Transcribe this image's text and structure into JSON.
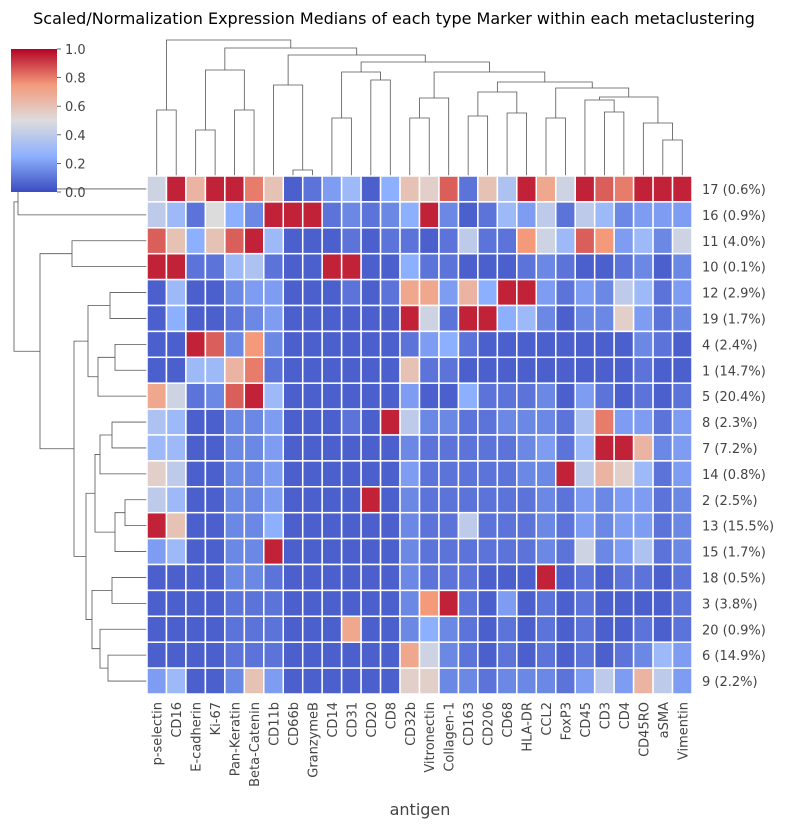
{
  "chart_data": {
    "type": "heatmap",
    "title": "Scaled/Normalization Expression Medians of each type Marker within each metaclustering",
    "xlabel": "antigen",
    "ylabel": "",
    "columns": [
      "p-selectin",
      "CD16",
      "E-cadherin",
      "Ki-67",
      "Pan-Keratin",
      "Beta-Catenin",
      "CD11b",
      "CD66b",
      "GranzymeB",
      "CD14",
      "CD31",
      "CD20",
      "CD8",
      "CD32b",
      "Vitronectin",
      "Collagen-1",
      "CD163",
      "CD206",
      "CD68",
      "HLA-DR",
      "CCL2",
      "FoxP3",
      "CD45",
      "CD3",
      "CD4",
      "CD45RO",
      "aSMA",
      "Vimentin"
    ],
    "rows": [
      "17 (0.6%)",
      "16 (0.9%)",
      "11 (4.0%)",
      "10 (0.1%)",
      "12 (2.9%)",
      "19 (1.7%)",
      "4 (2.4%)",
      "1 (14.7%)",
      "5 (20.4%)",
      "8 (2.3%)",
      "7 (7.2%)",
      "14 (0.8%)",
      "2 (2.5%)",
      "13 (15.5%)",
      "15 (1.7%)",
      "18 (0.5%)",
      "3 (3.8%)",
      "20 (0.9%)",
      "6 (14.9%)",
      "9 (2.2%)"
    ],
    "values": [
      [
        0.45,
        0.95,
        0.65,
        0.95,
        0.95,
        0.8,
        0.6,
        0.05,
        0.1,
        0.2,
        0.3,
        0.05,
        0.25,
        0.6,
        0.55,
        0.85,
        0.1,
        0.6,
        0.35,
        0.95,
        0.7,
        0.45,
        0.95,
        0.85,
        0.8,
        0.95,
        0.95,
        0.95
      ],
      [
        0.4,
        0.3,
        0.1,
        0.5,
        0.25,
        0.15,
        0.95,
        0.95,
        0.95,
        0.1,
        0.15,
        0.1,
        0.15,
        0.25,
        0.95,
        0.15,
        0.05,
        0.1,
        0.3,
        0.2,
        0.4,
        0.1,
        0.4,
        0.3,
        0.15,
        0.2,
        0.2,
        0.2
      ],
      [
        0.85,
        0.6,
        0.25,
        0.6,
        0.85,
        0.95,
        0.3,
        0.05,
        0.05,
        0.05,
        0.1,
        0.05,
        0.1,
        0.1,
        0.05,
        0.1,
        0.4,
        0.1,
        0.1,
        0.75,
        0.45,
        0.3,
        0.85,
        0.75,
        0.2,
        0.3,
        0.15,
        0.45
      ],
      [
        0.95,
        0.95,
        0.1,
        0.1,
        0.3,
        0.35,
        0.1,
        0.05,
        0.05,
        0.95,
        0.95,
        0.05,
        0.05,
        0.25,
        0.1,
        0.1,
        0.05,
        0.05,
        0.05,
        0.1,
        0.15,
        0.1,
        0.05,
        0.05,
        0.1,
        0.15,
        0.05,
        0.15
      ],
      [
        0.05,
        0.3,
        0.05,
        0.05,
        0.15,
        0.2,
        0.2,
        0.05,
        0.05,
        0.05,
        0.1,
        0.05,
        0.1,
        0.7,
        0.7,
        0.2,
        0.65,
        0.25,
        0.95,
        0.95,
        0.2,
        0.1,
        0.2,
        0.15,
        0.4,
        0.3,
        0.1,
        0.2
      ],
      [
        0.05,
        0.25,
        0.05,
        0.05,
        0.1,
        0.15,
        0.2,
        0.05,
        0.05,
        0.05,
        0.05,
        0.05,
        0.05,
        0.95,
        0.45,
        0.1,
        0.95,
        0.95,
        0.25,
        0.3,
        0.15,
        0.05,
        0.15,
        0.15,
        0.55,
        0.2,
        0.1,
        0.15
      ],
      [
        0.05,
        0.05,
        0.95,
        0.85,
        0.15,
        0.75,
        0.15,
        0.05,
        0.05,
        0.05,
        0.05,
        0.05,
        0.05,
        0.1,
        0.2,
        0.25,
        0.1,
        0.05,
        0.05,
        0.05,
        0.05,
        0.05,
        0.05,
        0.05,
        0.05,
        0.15,
        0.1,
        0.05
      ],
      [
        0.05,
        0.05,
        0.3,
        0.3,
        0.65,
        0.8,
        0.1,
        0.05,
        0.05,
        0.05,
        0.05,
        0.05,
        0.05,
        0.6,
        0.1,
        0.1,
        0.05,
        0.05,
        0.05,
        0.05,
        0.05,
        0.05,
        0.05,
        0.05,
        0.05,
        0.1,
        0.05,
        0.05
      ],
      [
        0.7,
        0.45,
        0.1,
        0.15,
        0.85,
        0.95,
        0.3,
        0.05,
        0.05,
        0.05,
        0.05,
        0.05,
        0.05,
        0.2,
        0.05,
        0.05,
        0.25,
        0.1,
        0.1,
        0.1,
        0.15,
        0.05,
        0.2,
        0.1,
        0.05,
        0.1,
        0.05,
        0.1
      ],
      [
        0.35,
        0.3,
        0.05,
        0.05,
        0.15,
        0.15,
        0.2,
        0.05,
        0.05,
        0.05,
        0.1,
        0.05,
        0.95,
        0.4,
        0.15,
        0.15,
        0.1,
        0.1,
        0.15,
        0.15,
        0.15,
        0.1,
        0.35,
        0.8,
        0.2,
        0.2,
        0.1,
        0.2
      ],
      [
        0.3,
        0.3,
        0.05,
        0.05,
        0.15,
        0.15,
        0.2,
        0.05,
        0.05,
        0.05,
        0.05,
        0.05,
        0.05,
        0.15,
        0.1,
        0.1,
        0.1,
        0.1,
        0.1,
        0.15,
        0.2,
        0.1,
        0.3,
        0.95,
        0.95,
        0.65,
        0.15,
        0.2
      ],
      [
        0.55,
        0.4,
        0.05,
        0.05,
        0.15,
        0.15,
        0.2,
        0.05,
        0.05,
        0.05,
        0.05,
        0.05,
        0.05,
        0.2,
        0.1,
        0.1,
        0.1,
        0.1,
        0.1,
        0.15,
        0.15,
        0.95,
        0.4,
        0.65,
        0.55,
        0.3,
        0.1,
        0.2
      ],
      [
        0.4,
        0.3,
        0.05,
        0.05,
        0.15,
        0.15,
        0.2,
        0.05,
        0.05,
        0.05,
        0.05,
        0.95,
        0.05,
        0.15,
        0.1,
        0.1,
        0.1,
        0.1,
        0.1,
        0.1,
        0.15,
        0.1,
        0.2,
        0.15,
        0.2,
        0.2,
        0.1,
        0.15
      ],
      [
        0.95,
        0.6,
        0.05,
        0.05,
        0.15,
        0.15,
        0.25,
        0.05,
        0.05,
        0.05,
        0.05,
        0.05,
        0.05,
        0.15,
        0.1,
        0.1,
        0.4,
        0.1,
        0.1,
        0.1,
        0.15,
        0.1,
        0.2,
        0.15,
        0.2,
        0.2,
        0.1,
        0.15
      ],
      [
        0.2,
        0.3,
        0.05,
        0.05,
        0.15,
        0.15,
        0.95,
        0.05,
        0.05,
        0.05,
        0.05,
        0.05,
        0.05,
        0.15,
        0.1,
        0.1,
        0.1,
        0.1,
        0.1,
        0.1,
        0.15,
        0.1,
        0.45,
        0.15,
        0.2,
        0.35,
        0.1,
        0.15
      ],
      [
        0.05,
        0.05,
        0.05,
        0.05,
        0.15,
        0.15,
        0.1,
        0.05,
        0.05,
        0.05,
        0.05,
        0.05,
        0.05,
        0.15,
        0.1,
        0.1,
        0.1,
        0.05,
        0.05,
        0.05,
        0.95,
        0.05,
        0.1,
        0.05,
        0.1,
        0.1,
        0.05,
        0.1
      ],
      [
        0.05,
        0.05,
        0.05,
        0.05,
        0.1,
        0.1,
        0.1,
        0.05,
        0.05,
        0.05,
        0.05,
        0.05,
        0.05,
        0.15,
        0.75,
        0.95,
        0.1,
        0.05,
        0.2,
        0.05,
        0.1,
        0.05,
        0.1,
        0.05,
        0.05,
        0.05,
        0.05,
        0.1
      ],
      [
        0.05,
        0.05,
        0.05,
        0.05,
        0.1,
        0.1,
        0.1,
        0.05,
        0.05,
        0.05,
        0.7,
        0.05,
        0.05,
        0.15,
        0.25,
        0.15,
        0.1,
        0.05,
        0.1,
        0.05,
        0.1,
        0.05,
        0.1,
        0.05,
        0.05,
        0.1,
        0.05,
        0.1
      ],
      [
        0.05,
        0.05,
        0.05,
        0.05,
        0.1,
        0.1,
        0.1,
        0.05,
        0.05,
        0.05,
        0.05,
        0.05,
        0.05,
        0.7,
        0.45,
        0.15,
        0.1,
        0.05,
        0.1,
        0.05,
        0.1,
        0.05,
        0.1,
        0.05,
        0.1,
        0.15,
        0.3,
        0.2
      ],
      [
        0.2,
        0.3,
        0.05,
        0.05,
        0.15,
        0.6,
        0.2,
        0.05,
        0.05,
        0.05,
        0.05,
        0.05,
        0.05,
        0.55,
        0.55,
        0.15,
        0.15,
        0.1,
        0.15,
        0.15,
        0.15,
        0.1,
        0.2,
        0.4,
        0.2,
        0.65,
        0.4,
        0.2
      ]
    ],
    "vmin": 0,
    "vmax": 1,
    "colormap": "coolwarm",
    "colorbar_ticks": [
      "0.0",
      "0.2",
      "0.4",
      "0.6",
      "0.8",
      "1.0"
    ],
    "dendrograms": true,
    "grid": false
  }
}
